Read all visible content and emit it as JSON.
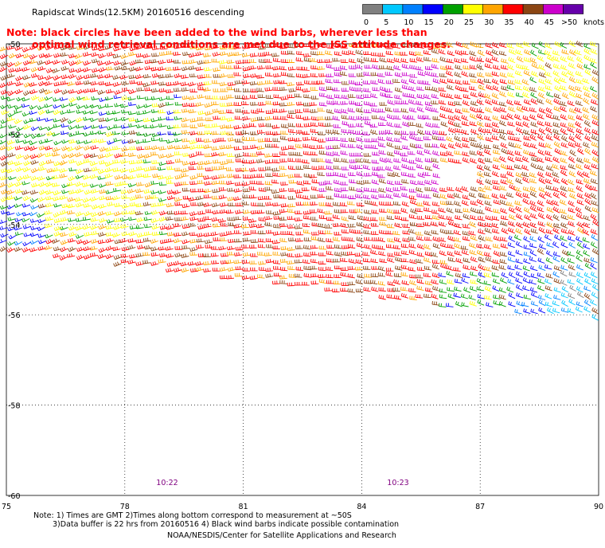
{
  "header": {
    "title": "Rapidscat Winds(12.5KM) 20160516 descending",
    "note_line1": "Note: black circles have been added to the wind barbs, wherever less than",
    "note_line2": "optimal wind retrieval conditions are met due to the ISS attitude changes."
  },
  "colorbar": {
    "unit": "knots",
    "labels": [
      "0",
      "5",
      "10",
      "15",
      "20",
      "25",
      "30",
      "35",
      "40",
      "45",
      ">50"
    ],
    "colors": [
      "#808080",
      "#00c8ff",
      "#0080ff",
      "#0000ff",
      "#00a000",
      "#ffff00",
      "#ffa500",
      "#ff0000",
      "#8b4513",
      "#cc00cc",
      "#6600aa"
    ]
  },
  "map": {
    "lon_labels": [
      "75",
      "78",
      "81",
      "84",
      "87",
      "90"
    ],
    "lat_labels": [
      "-50",
      "-52",
      "-54",
      "-56",
      "-58",
      "-60"
    ],
    "times": [
      "10:22",
      "10:23"
    ],
    "time_color": "#800080"
  },
  "footer": {
    "line1": "Note: 1) Times are GMT 2)Times along bottom correspond to measurement at ~50S",
    "line2": "3)Data buffer is 22 hrs from 20160516 4) Black wind barbs indicate possible contamination",
    "line3": "NOAA/NESDIS/Center for Satellite Applications and Research"
  }
}
